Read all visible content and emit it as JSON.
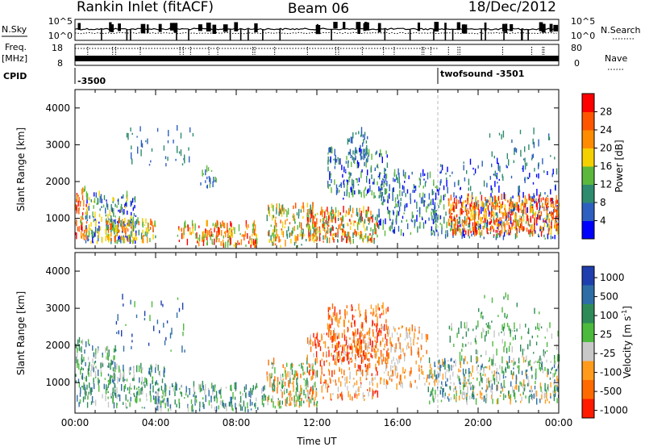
{
  "header": {
    "station": "Rankin Inlet (fitACF)",
    "beam": "Beam 06",
    "date": "18/Dec/2012"
  },
  "summary_panels": {
    "nsky": {
      "label": "N.Sky",
      "top_tick": "10^5",
      "bottom_tick": "10^0",
      "right_label": "N.Search",
      "right_top_tick": "10^5",
      "right_bottom_tick": "10^0"
    },
    "freq": {
      "label_line1": "Freq.",
      "label_line2": "[MHz]",
      "top_tick": "18",
      "bottom_tick": "8",
      "right_label": "Nave",
      "right_top_tick": "80",
      "right_bottom_tick": "0"
    },
    "cpid": {
      "label": "CPID",
      "entries": [
        {
          "text": "-3500",
          "start_hour": 0
        },
        {
          "text": "twofsound -3501",
          "start_hour": 18.0
        }
      ]
    }
  },
  "chart_data": [
    {
      "type": "heatmap",
      "name": "power",
      "ylabel": "Slant Range [km]",
      "xlabel": "",
      "xlim": [
        0,
        24
      ],
      "ylim": [
        180,
        4500
      ],
      "y_ticks": [
        1000,
        2000,
        3000,
        4000
      ],
      "colorbar": {
        "label": "Power [dB]",
        "range": [
          0,
          32
        ],
        "ticks": [
          4,
          8,
          12,
          16,
          20,
          24,
          28
        ],
        "colors": [
          "#0000ff",
          "#2d5fc0",
          "#2e8b6e",
          "#5cb83c",
          "#f5d000",
          "#ff8c00",
          "#ff5500",
          "#ff0000"
        ]
      }
    },
    {
      "type": "heatmap",
      "name": "velocity",
      "ylabel": "Slant Range [km]",
      "xlabel": "Time UT",
      "xlim": [
        0,
        24
      ],
      "ylim": [
        180,
        4500
      ],
      "y_ticks": [
        1000,
        2000,
        3000,
        4000
      ],
      "x_tick_labels": [
        "00:00",
        "04:00",
        "08:00",
        "12:00",
        "16:00",
        "20:00",
        "00:00"
      ],
      "colorbar": {
        "label": "Velocity [m s",
        "label_sup": "-1",
        "label_end": "]",
        "ticks": [
          "1000",
          "500",
          "100",
          "25",
          "-25",
          "-100",
          "-500",
          "-1000"
        ],
        "colors": [
          "#1f3fae",
          "#2e6ea6",
          "#2e8b57",
          "#4cba3c",
          "#c8c8c8",
          "#ff9a1a",
          "#ff6a00",
          "#ff1a00"
        ]
      }
    }
  ]
}
